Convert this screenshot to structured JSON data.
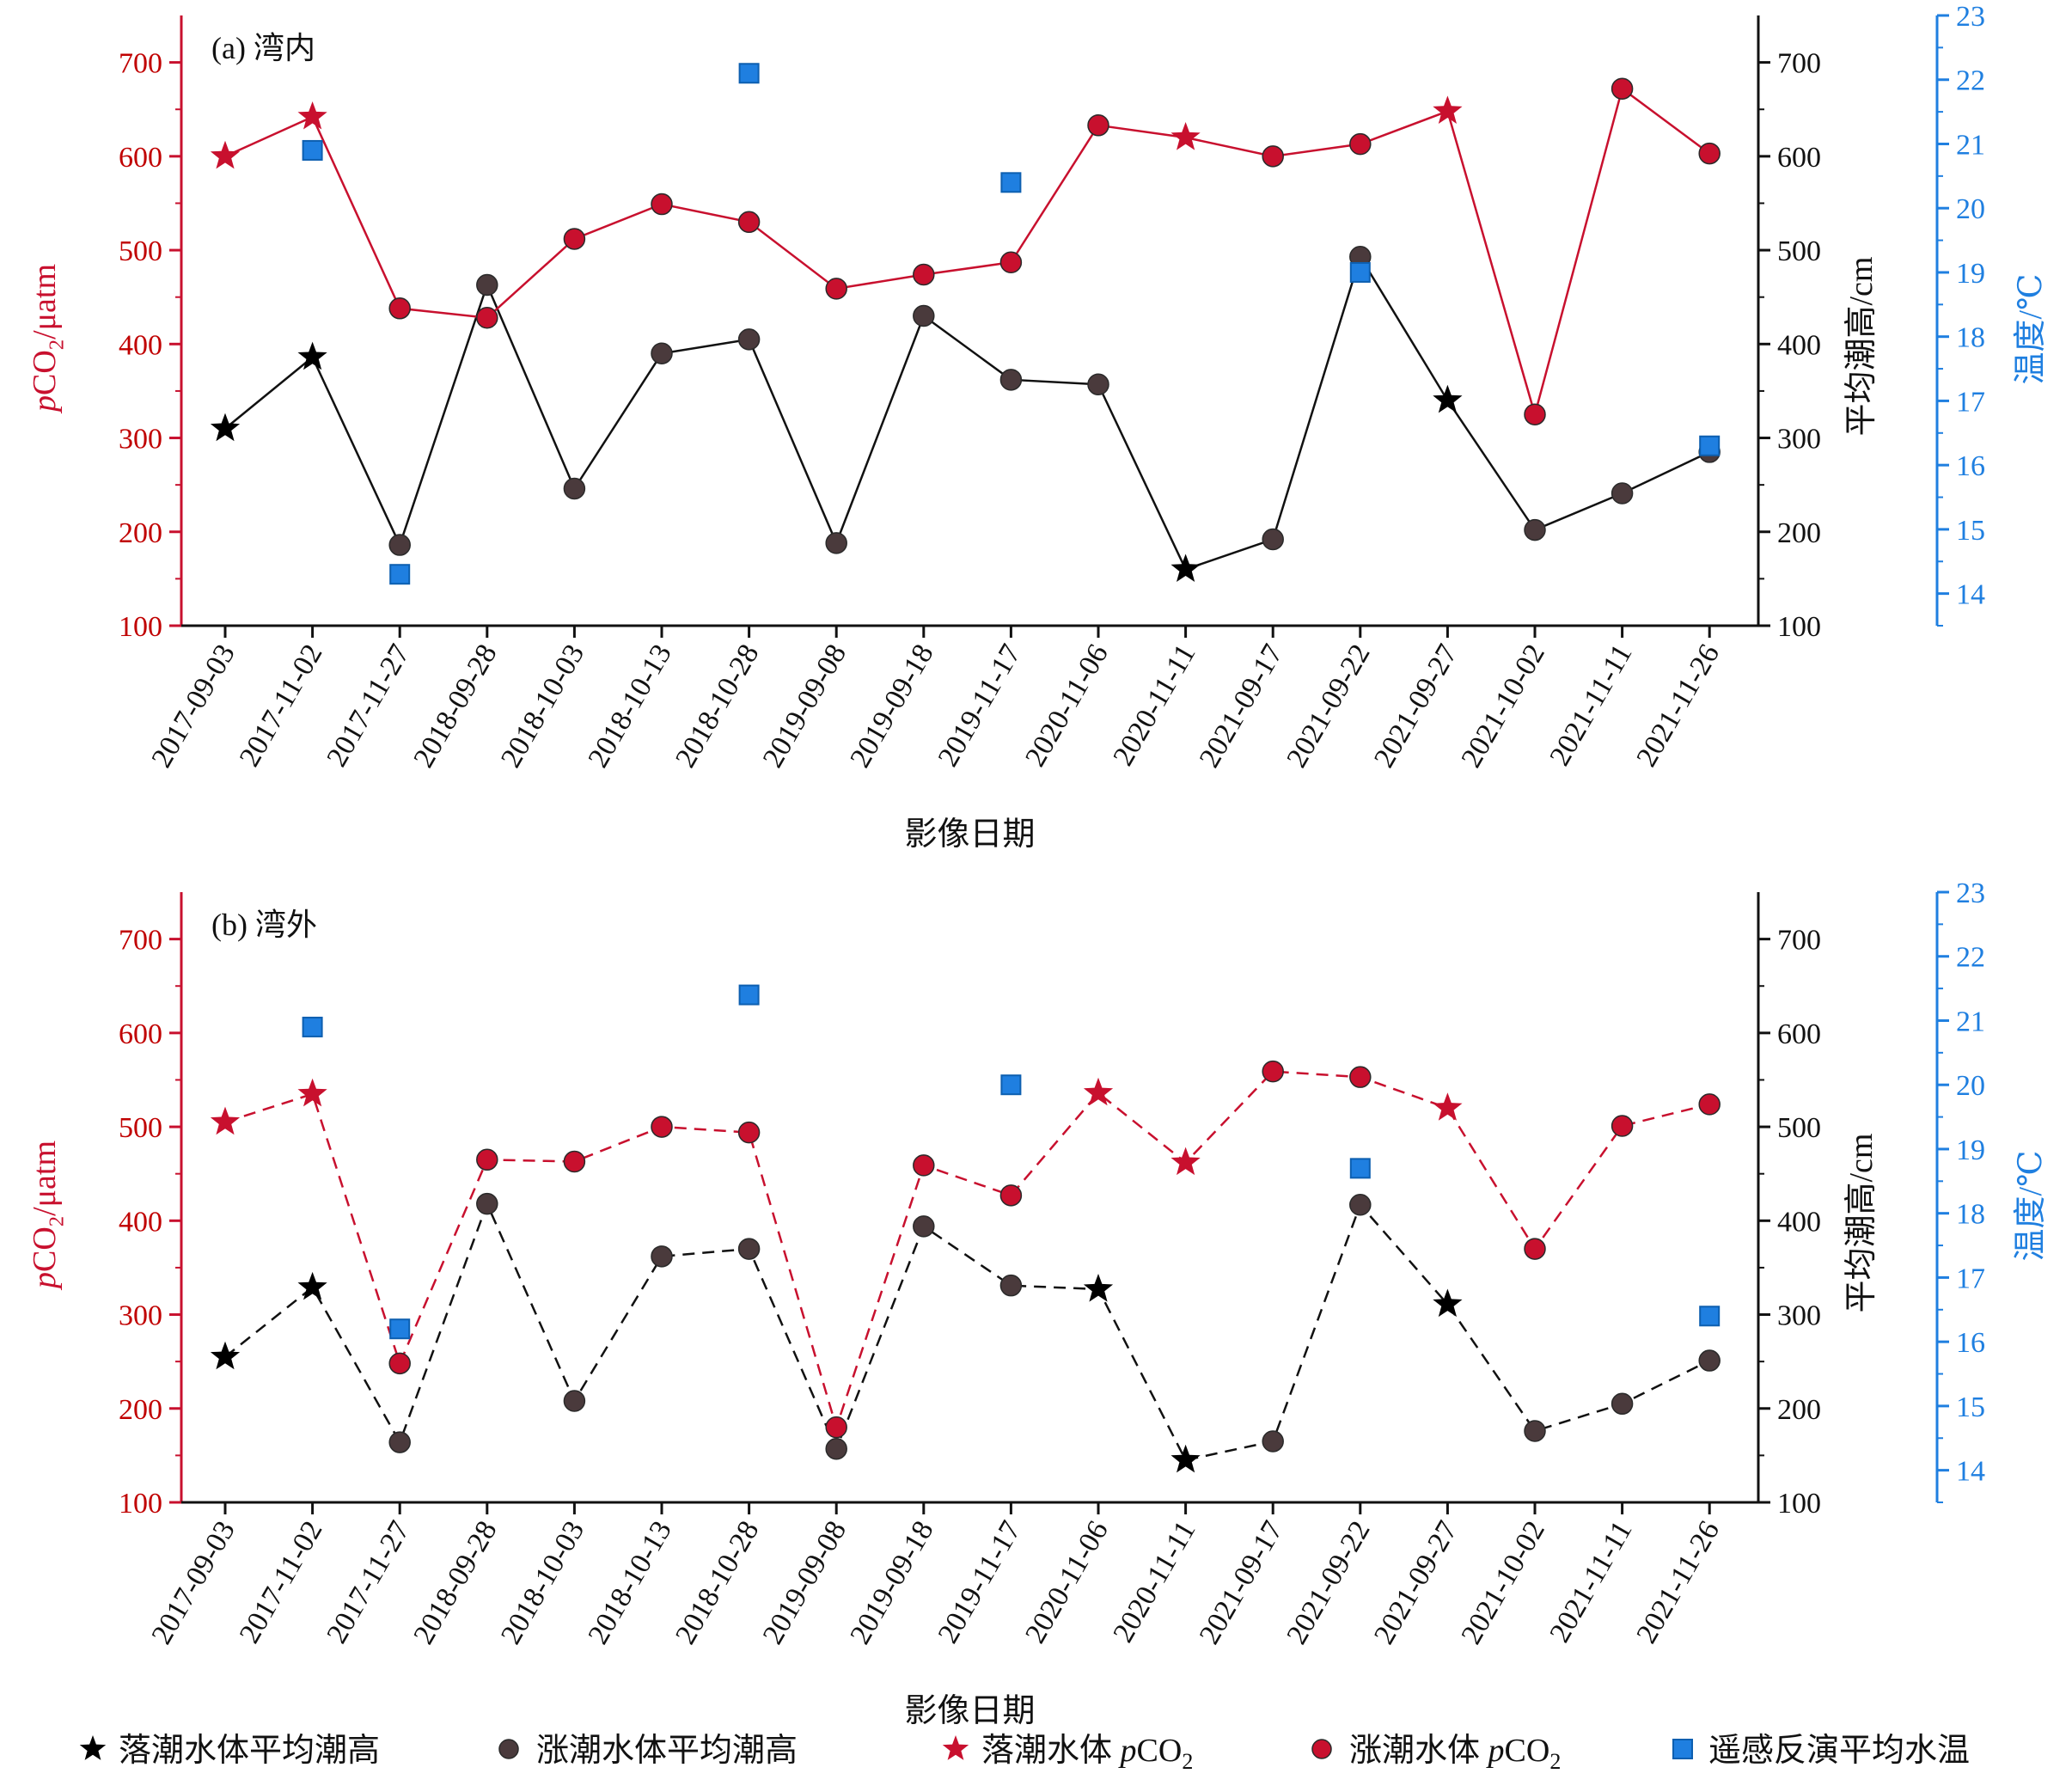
{
  "figure": {
    "xlabel": "影像日期",
    "dates": [
      "2017-09-03",
      "2017-11-02",
      "2017-11-27",
      "2018-09-28",
      "2018-10-03",
      "2018-10-13",
      "2018-10-28",
      "2019-09-08",
      "2019-09-18",
      "2019-11-17",
      "2020-11-06",
      "2020-11-11",
      "2021-09-17",
      "2021-09-22",
      "2021-09-27",
      "2021-10-02",
      "2021-11-11",
      "2021-11-26"
    ],
    "colors": {
      "pco2": "#c8102e",
      "tide": "#111111",
      "tide_marker": "#4a3a3c",
      "temp": "#1f7fe0"
    }
  },
  "legend": [
    {
      "label": "落潮水体平均潮高",
      "marker": "black-star"
    },
    {
      "label": "涨潮水体平均潮高",
      "marker": "dark-circle"
    },
    {
      "label": "落潮水体 pCO₂",
      "marker": "red-star"
    },
    {
      "label": "涨潮水体 pCO₂",
      "marker": "red-circle"
    },
    {
      "label": "遥感反演平均水温",
      "marker": "blue-square"
    }
  ],
  "chart_data": [
    {
      "type": "line",
      "panel_label": "(a) 湾内",
      "xlabel": "影像日期",
      "ylabel_left": "pCO₂/μatm",
      "ylabel_right1": "平均潮高/cm",
      "ylabel_right2": "温度/℃",
      "ylim_left": [
        100,
        750
      ],
      "ylim_right1": [
        100,
        750
      ],
      "ylim_right2": [
        13.5,
        23
      ],
      "yticks_left": [
        100,
        200,
        300,
        400,
        500,
        600,
        700
      ],
      "yticks_right1": [
        100,
        200,
        300,
        400,
        500,
        600,
        700
      ],
      "yticks_right2": [
        14,
        15,
        16,
        17,
        18,
        19,
        20,
        21,
        22,
        23
      ],
      "line_style": "solid",
      "categories": [
        "2017-09-03",
        "2017-11-02",
        "2017-11-27",
        "2018-09-28",
        "2018-10-03",
        "2018-10-13",
        "2018-10-28",
        "2019-09-08",
        "2019-09-18",
        "2019-11-17",
        "2020-11-06",
        "2020-11-11",
        "2021-09-17",
        "2021-09-22",
        "2021-09-27",
        "2021-10-02",
        "2021-11-11",
        "2021-11-26"
      ],
      "series": [
        {
          "name": "落潮水体 pCO₂/涨潮水体 pCO₂",
          "axis": "left",
          "values": [
            600,
            642,
            438,
            428,
            512,
            549,
            530,
            459,
            474,
            487,
            633,
            620,
            600,
            613,
            648,
            325,
            672,
            603
          ],
          "markers": [
            "star",
            "star",
            "circle",
            "circle",
            "circle",
            "circle",
            "circle",
            "circle",
            "circle",
            "circle",
            "circle",
            "star",
            "circle",
            "circle",
            "star",
            "circle",
            "circle",
            "circle"
          ]
        },
        {
          "name": "落潮水体平均潮高/涨潮水体平均潮高",
          "axis": "right1",
          "values": [
            310,
            386,
            186,
            463,
            246,
            390,
            405,
            188,
            430,
            362,
            357,
            160,
            192,
            493,
            340,
            202,
            241,
            285
          ],
          "markers": [
            "star",
            "star",
            "circle",
            "circle",
            "circle",
            "circle",
            "circle",
            "circle",
            "circle",
            "circle",
            "circle",
            "star",
            "circle",
            "circle",
            "star",
            "circle",
            "circle",
            "circle"
          ]
        },
        {
          "name": "遥感反演平均水温",
          "axis": "right2",
          "points": [
            {
              "x": "2017-11-02",
              "y": 20.9
            },
            {
              "x": "2017-11-27",
              "y": 14.3
            },
            {
              "x": "2018-10-28",
              "y": 22.1
            },
            {
              "x": "2019-11-17",
              "y": 20.4
            },
            {
              "x": "2021-09-22",
              "y": 19.0
            },
            {
              "x": "2021-11-26",
              "y": 16.3
            }
          ]
        }
      ]
    },
    {
      "type": "line",
      "panel_label": "(b) 湾外",
      "xlabel": "影像日期",
      "ylabel_left": "pCO₂/μatm",
      "ylabel_right1": "平均潮高/cm",
      "ylabel_right2": "温度/℃",
      "ylim_left": [
        100,
        750
      ],
      "ylim_right1": [
        100,
        750
      ],
      "ylim_right2": [
        13.5,
        23
      ],
      "yticks_left": [
        100,
        200,
        300,
        400,
        500,
        600,
        700
      ],
      "yticks_right1": [
        100,
        200,
        300,
        400,
        500,
        600,
        700
      ],
      "yticks_right2": [
        14,
        15,
        16,
        17,
        18,
        19,
        20,
        21,
        22,
        23
      ],
      "line_style": "dashed",
      "categories": [
        "2017-09-03",
        "2017-11-02",
        "2017-11-27",
        "2018-09-28",
        "2018-10-03",
        "2018-10-13",
        "2018-10-28",
        "2019-09-08",
        "2019-09-18",
        "2019-11-17",
        "2020-11-06",
        "2020-11-11",
        "2021-09-17",
        "2021-09-22",
        "2021-09-27",
        "2021-10-02",
        "2021-11-11",
        "2021-11-26"
      ],
      "series": [
        {
          "name": "落潮水体 pCO₂/涨潮水体 pCO₂",
          "axis": "left",
          "values": [
            505,
            535,
            248,
            465,
            463,
            500,
            494,
            180,
            459,
            427,
            536,
            462,
            559,
            553,
            520,
            370,
            501,
            524
          ],
          "markers": [
            "star",
            "star",
            "circle",
            "circle",
            "circle",
            "circle",
            "circle",
            "circle",
            "circle",
            "circle",
            "star",
            "star",
            "circle",
            "circle",
            "star",
            "circle",
            "circle",
            "circle"
          ]
        },
        {
          "name": "落潮水体平均潮高/涨潮水体平均潮高",
          "axis": "right1",
          "values": [
            255,
            329,
            164,
            418,
            208,
            362,
            370,
            157,
            394,
            331,
            327,
            145,
            165,
            417,
            311,
            176,
            205,
            251
          ],
          "markers": [
            "star",
            "star",
            "circle",
            "circle",
            "circle",
            "circle",
            "circle",
            "circle",
            "circle",
            "circle",
            "star",
            "star",
            "circle",
            "circle",
            "star",
            "circle",
            "circle",
            "circle"
          ]
        },
        {
          "name": "遥感反演平均水温",
          "axis": "right2",
          "points": [
            {
              "x": "2017-11-02",
              "y": 20.9
            },
            {
              "x": "2017-11-27",
              "y": 16.2
            },
            {
              "x": "2018-10-28",
              "y": 21.4
            },
            {
              "x": "2019-11-17",
              "y": 20.0
            },
            {
              "x": "2021-09-22",
              "y": 18.7
            },
            {
              "x": "2021-11-26",
              "y": 16.4
            }
          ]
        }
      ]
    }
  ]
}
